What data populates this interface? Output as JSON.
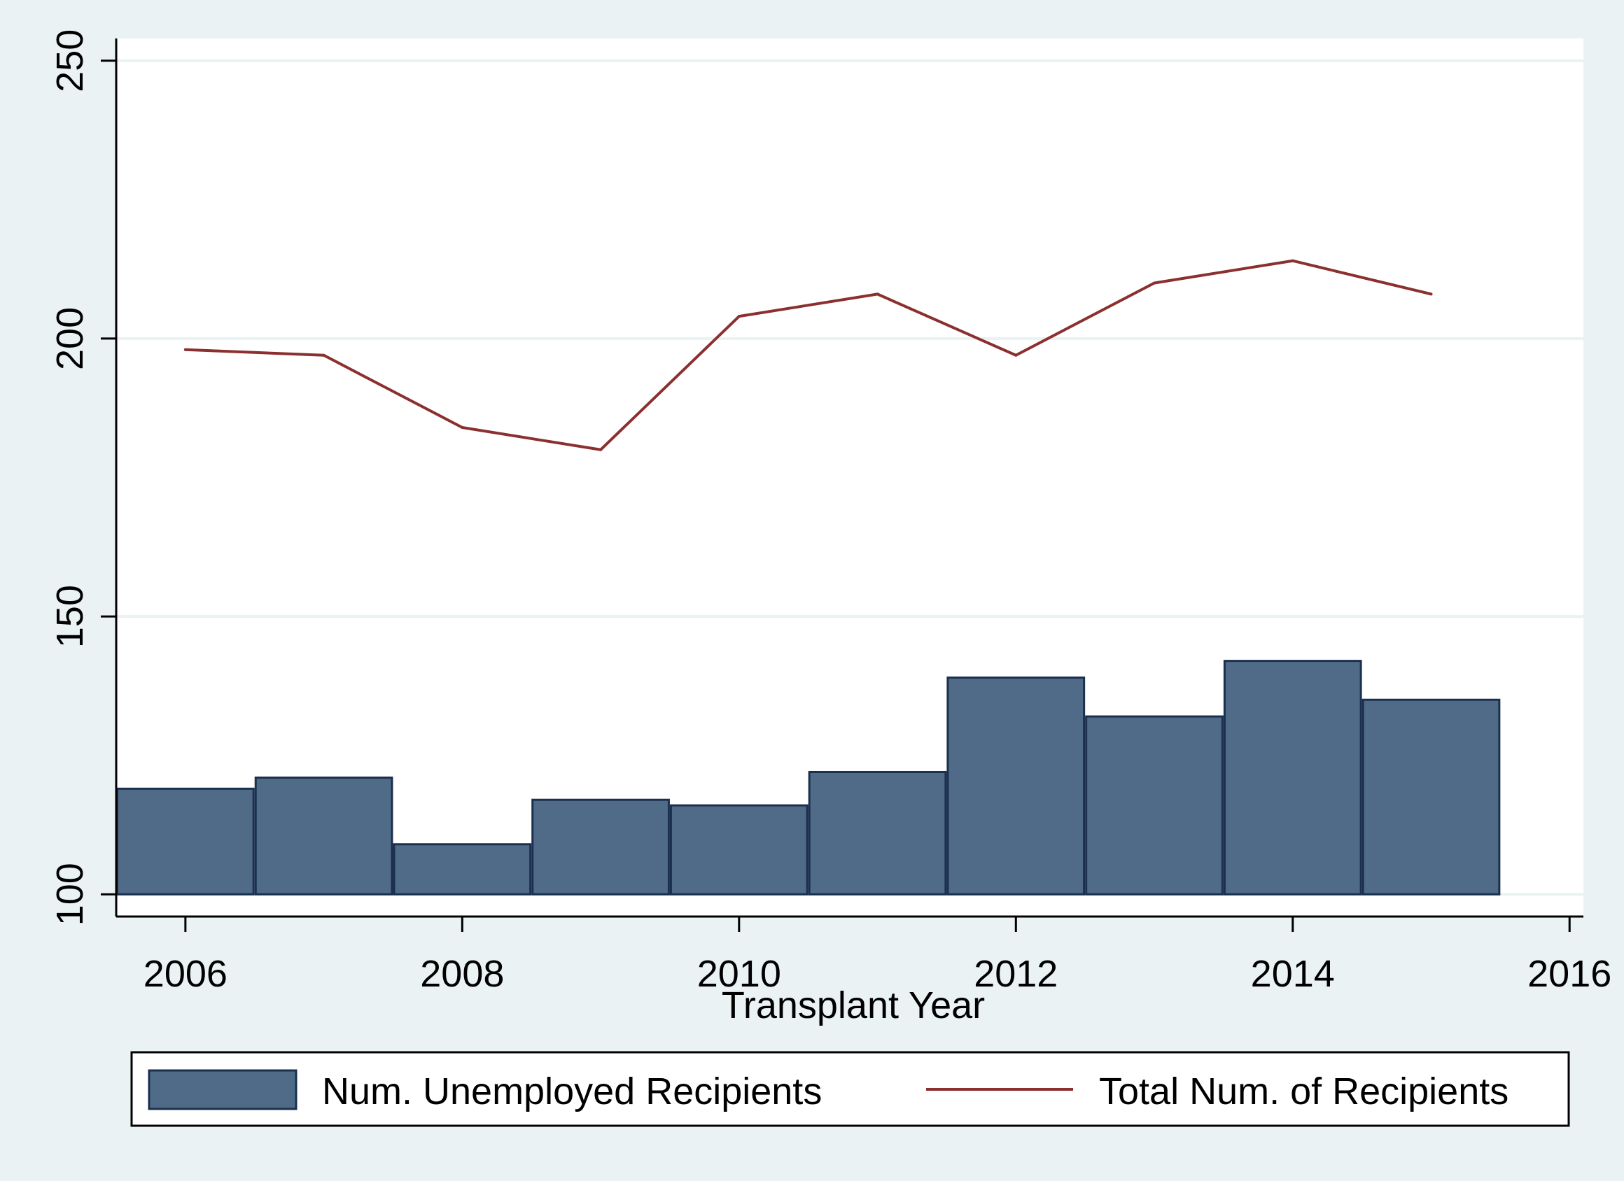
{
  "chart_data": {
    "type": "bar",
    "xlabel": "Transplant Year",
    "ylabel": "",
    "xlim": [
      2005.5,
      2016.1
    ],
    "ylim": [
      96,
      254
    ],
    "x_ticks": [
      "2006",
      "2008",
      "2010",
      "2012",
      "2014",
      "2016"
    ],
    "y_ticks": [
      "100",
      "150",
      "200",
      "250"
    ],
    "grid": true,
    "legend_position": "bottom",
    "series": [
      {
        "name": "Num. Unemployed Recipients",
        "type": "bar",
        "color": "#4f6b88",
        "x": [
          2006,
          2007,
          2008,
          2009,
          2010,
          2011,
          2012,
          2013,
          2014,
          2015
        ],
        "values": [
          119,
          121,
          109,
          117,
          116,
          122,
          139,
          132,
          142,
          135
        ]
      },
      {
        "name": "Total Num. of Recipients",
        "type": "line",
        "color": "#8b2f2f",
        "x": [
          2006,
          2007,
          2008,
          2009,
          2010,
          2011,
          2012,
          2013,
          2014,
          2015
        ],
        "values": [
          198,
          197,
          184,
          180,
          204,
          208,
          197,
          210,
          214,
          208
        ]
      }
    ]
  }
}
